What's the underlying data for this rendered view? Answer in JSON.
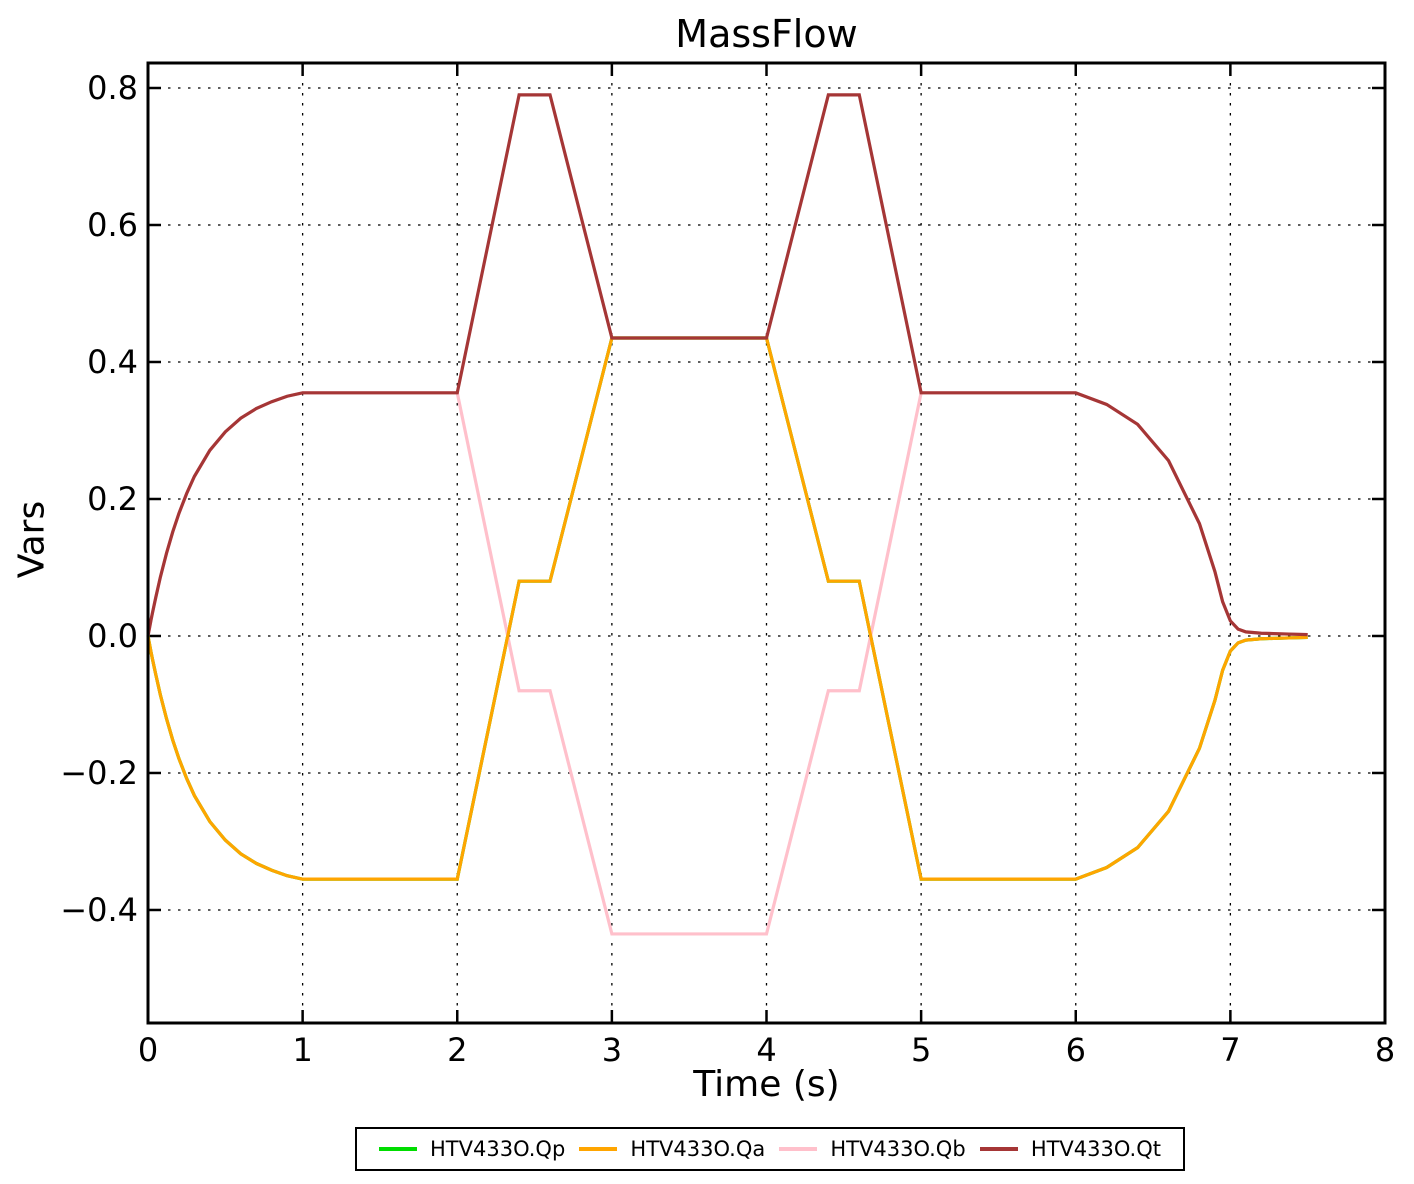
{
  "title": "MassFlow",
  "axes": {
    "xlabel": "Time (s)",
    "ylabel": "Vars",
    "x_ticks": [
      {
        "value": 0,
        "label": "0"
      },
      {
        "value": 1,
        "label": "1"
      },
      {
        "value": 2,
        "label": "2"
      },
      {
        "value": 3,
        "label": "3"
      },
      {
        "value": 4,
        "label": "4"
      },
      {
        "value": 5,
        "label": "5"
      },
      {
        "value": 6,
        "label": "6"
      },
      {
        "value": 7,
        "label": "7"
      },
      {
        "value": 8,
        "label": "8"
      }
    ],
    "y_ticks": [
      {
        "value": 0.8,
        "label": "0.8"
      },
      {
        "value": 0.6,
        "label": "0.6"
      },
      {
        "value": 0.4,
        "label": "0.4"
      },
      {
        "value": 0.2,
        "label": "0.2"
      },
      {
        "value": 0.0,
        "label": "0.0"
      },
      {
        "value": -0.2,
        "label": "−0.2"
      },
      {
        "value": -0.4,
        "label": "−0.4"
      }
    ]
  },
  "chart_data": {
    "type": "line",
    "title": "MassFlow",
    "xlabel": "Time (s)",
    "ylabel": "Vars",
    "xlim": [
      0,
      8
    ],
    "ylim": [
      -0.565,
      0.8365
    ],
    "grid": "dotted",
    "legend_position": "bottom-center",
    "draw_order": [
      0,
      2,
      1,
      3
    ],
    "series": [
      {
        "name": "HTV433O.Qp",
        "color": "#00dd00",
        "points": [
          [
            0,
            0
          ],
          [
            0.01,
            -0.012
          ],
          [
            0.02,
            -0.024
          ],
          [
            0.03,
            -0.035
          ],
          [
            0.05,
            -0.056
          ],
          [
            0.08,
            -0.086
          ],
          [
            0.12,
            -0.121
          ],
          [
            0.16,
            -0.152
          ],
          [
            0.2,
            -0.179
          ],
          [
            0.25,
            -0.208
          ],
          [
            0.3,
            -0.233
          ],
          [
            0.4,
            -0.271
          ],
          [
            0.5,
            -0.298
          ],
          [
            0.6,
            -0.318
          ],
          [
            0.7,
            -0.332
          ],
          [
            0.8,
            -0.342
          ],
          [
            0.9,
            -0.35
          ],
          [
            1,
            -0.355
          ],
          [
            2,
            -0.355
          ],
          [
            2.4,
            0.08
          ],
          [
            2.6,
            0.08
          ],
          [
            3,
            0.435
          ],
          [
            4,
            0.435
          ],
          [
            4.4,
            0.08
          ],
          [
            4.6,
            0.08
          ],
          [
            5,
            -0.355
          ],
          [
            6,
            -0.355
          ],
          [
            6.2,
            -0.338
          ],
          [
            6.4,
            -0.309
          ],
          [
            6.6,
            -0.256
          ],
          [
            6.8,
            -0.164
          ],
          [
            6.9,
            -0.094
          ],
          [
            6.95,
            -0.05
          ],
          [
            7,
            -0.022
          ],
          [
            7.05,
            -0.01
          ],
          [
            7.1,
            -0.006
          ],
          [
            7.2,
            -0.004
          ],
          [
            7.35,
            -0.003
          ],
          [
            7.5,
            -0.002
          ]
        ]
      },
      {
        "name": "HTV433O.Qa",
        "color": "#ffa500",
        "points": [
          [
            0,
            0
          ],
          [
            0.01,
            -0.012
          ],
          [
            0.02,
            -0.024
          ],
          [
            0.03,
            -0.035
          ],
          [
            0.05,
            -0.056
          ],
          [
            0.08,
            -0.086
          ],
          [
            0.12,
            -0.121
          ],
          [
            0.16,
            -0.152
          ],
          [
            0.2,
            -0.179
          ],
          [
            0.25,
            -0.208
          ],
          [
            0.3,
            -0.233
          ],
          [
            0.4,
            -0.271
          ],
          [
            0.5,
            -0.298
          ],
          [
            0.6,
            -0.318
          ],
          [
            0.7,
            -0.332
          ],
          [
            0.8,
            -0.342
          ],
          [
            0.9,
            -0.35
          ],
          [
            1,
            -0.355
          ],
          [
            2,
            -0.355
          ],
          [
            2.4,
            0.08
          ],
          [
            2.6,
            0.08
          ],
          [
            3,
            0.435
          ],
          [
            4,
            0.435
          ],
          [
            4.4,
            0.08
          ],
          [
            4.6,
            0.08
          ],
          [
            5,
            -0.355
          ],
          [
            6,
            -0.355
          ],
          [
            6.2,
            -0.338
          ],
          [
            6.4,
            -0.309
          ],
          [
            6.6,
            -0.256
          ],
          [
            6.8,
            -0.164
          ],
          [
            6.9,
            -0.094
          ],
          [
            6.95,
            -0.05
          ],
          [
            7,
            -0.022
          ],
          [
            7.05,
            -0.01
          ],
          [
            7.1,
            -0.006
          ],
          [
            7.2,
            -0.004
          ],
          [
            7.35,
            -0.003
          ],
          [
            7.5,
            -0.002
          ]
        ]
      },
      {
        "name": "HTV433O.Qb",
        "color": "#ffc0cb",
        "points": [
          [
            0,
            0
          ],
          [
            0.01,
            0.012
          ],
          [
            0.02,
            0.024
          ],
          [
            0.03,
            0.035
          ],
          [
            0.05,
            0.056
          ],
          [
            0.08,
            0.086
          ],
          [
            0.12,
            0.121
          ],
          [
            0.16,
            0.152
          ],
          [
            0.2,
            0.179
          ],
          [
            0.25,
            0.208
          ],
          [
            0.3,
            0.233
          ],
          [
            0.4,
            0.271
          ],
          [
            0.5,
            0.298
          ],
          [
            0.6,
            0.318
          ],
          [
            0.7,
            0.332
          ],
          [
            0.8,
            0.342
          ],
          [
            0.9,
            0.35
          ],
          [
            1,
            0.355
          ],
          [
            2,
            0.355
          ],
          [
            2.4,
            -0.08
          ],
          [
            2.6,
            -0.08
          ],
          [
            3,
            -0.435
          ],
          [
            4,
            -0.435
          ],
          [
            4.4,
            -0.08
          ],
          [
            4.6,
            -0.08
          ],
          [
            5,
            0.355
          ],
          [
            6,
            0.355
          ],
          [
            6.2,
            0.338
          ],
          [
            6.4,
            0.309
          ],
          [
            6.6,
            0.256
          ],
          [
            6.8,
            0.164
          ],
          [
            6.9,
            0.094
          ],
          [
            6.95,
            0.05
          ],
          [
            7,
            0.022
          ],
          [
            7.05,
            0.01
          ],
          [
            7.1,
            0.006
          ],
          [
            7.2,
            0.004
          ],
          [
            7.35,
            0.003
          ],
          [
            7.5,
            0.002
          ]
        ]
      },
      {
        "name": "HTV433O.Qt",
        "color": "#a53636",
        "points": [
          [
            0,
            0
          ],
          [
            0.01,
            0.012
          ],
          [
            0.02,
            0.024
          ],
          [
            0.03,
            0.035
          ],
          [
            0.05,
            0.056
          ],
          [
            0.08,
            0.086
          ],
          [
            0.12,
            0.121
          ],
          [
            0.16,
            0.152
          ],
          [
            0.2,
            0.179
          ],
          [
            0.25,
            0.208
          ],
          [
            0.3,
            0.233
          ],
          [
            0.4,
            0.271
          ],
          [
            0.5,
            0.298
          ],
          [
            0.6,
            0.318
          ],
          [
            0.7,
            0.332
          ],
          [
            0.8,
            0.342
          ],
          [
            0.9,
            0.35
          ],
          [
            1,
            0.355
          ],
          [
            2,
            0.355
          ],
          [
            2.4,
            0.79
          ],
          [
            2.6,
            0.79
          ],
          [
            3,
            0.435
          ],
          [
            4,
            0.435
          ],
          [
            4.4,
            0.79
          ],
          [
            4.6,
            0.79
          ],
          [
            5,
            0.355
          ],
          [
            6,
            0.355
          ],
          [
            6.2,
            0.338
          ],
          [
            6.4,
            0.309
          ],
          [
            6.6,
            0.256
          ],
          [
            6.8,
            0.164
          ],
          [
            6.9,
            0.094
          ],
          [
            6.95,
            0.05
          ],
          [
            7,
            0.022
          ],
          [
            7.05,
            0.01
          ],
          [
            7.1,
            0.006
          ],
          [
            7.2,
            0.004
          ],
          [
            7.35,
            0.003
          ],
          [
            7.5,
            0.002
          ]
        ]
      }
    ]
  },
  "style": {
    "grid_color": "#000000",
    "spine_color": "#000000",
    "background": "#ffffff"
  }
}
